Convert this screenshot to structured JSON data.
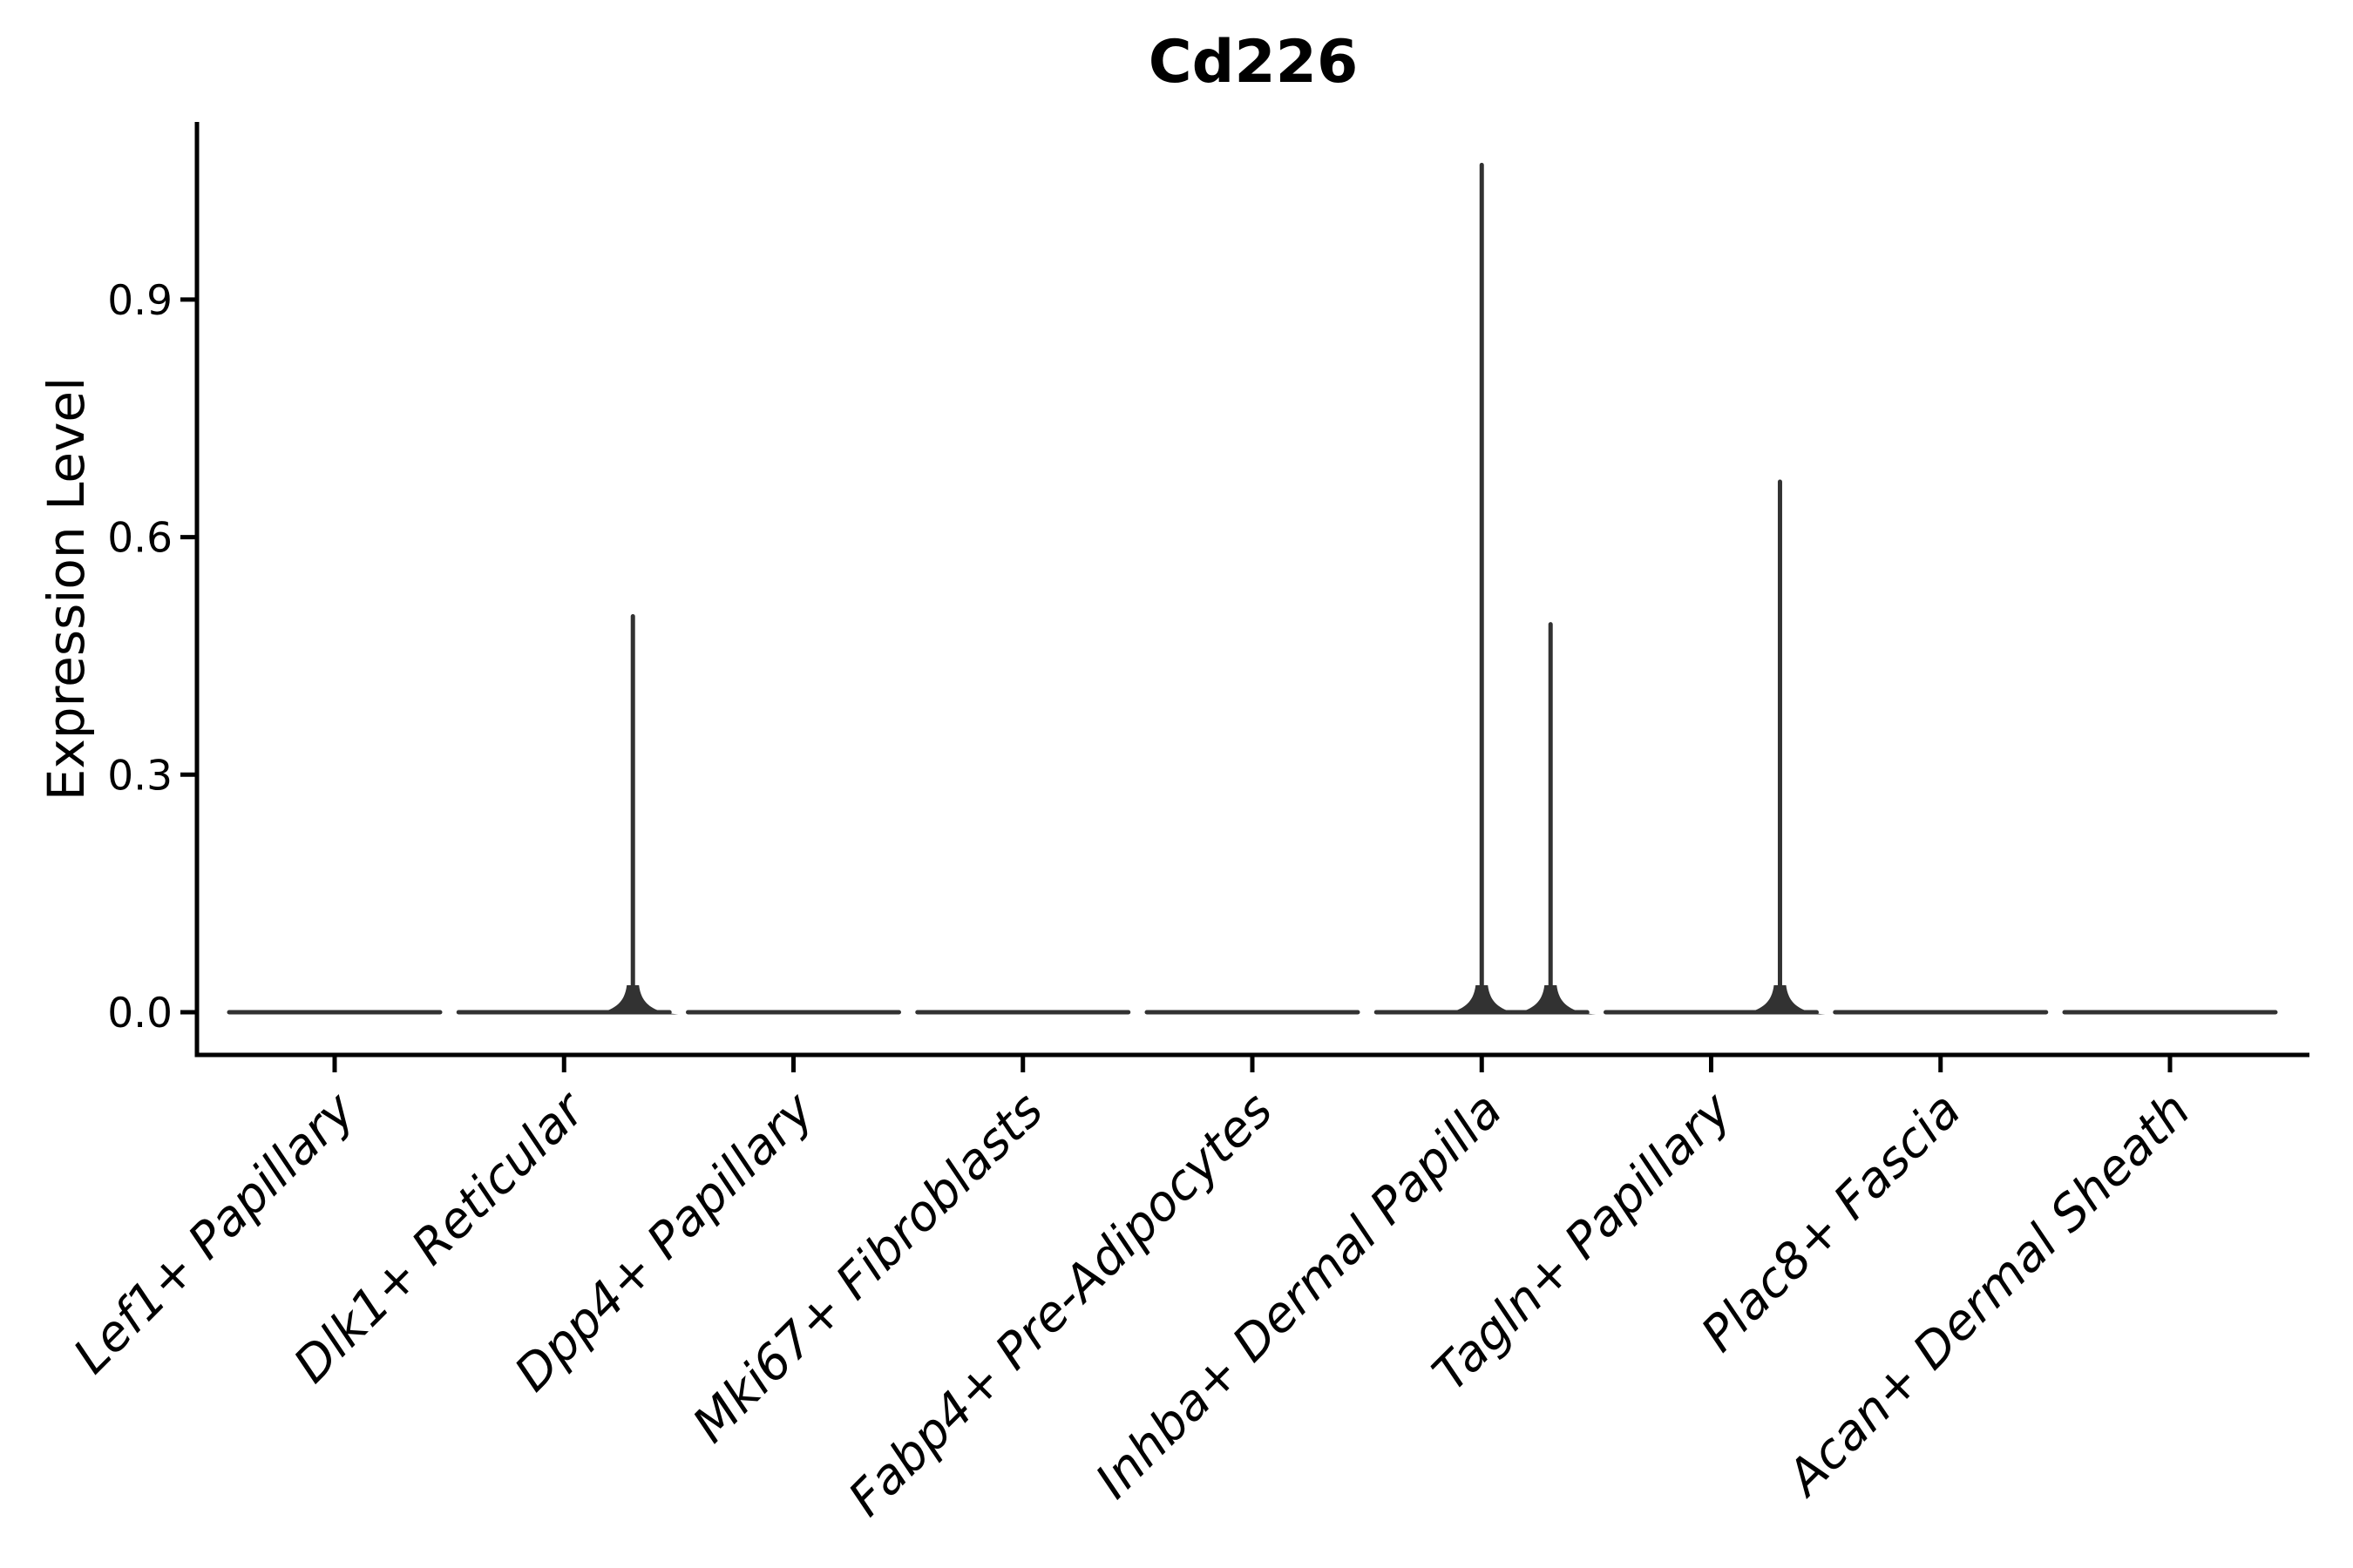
{
  "chart_data": {
    "type": "violin",
    "title": "Cd226",
    "xlabel": "",
    "ylabel": "Expression Level",
    "yticks": [
      0.0,
      0.3,
      0.6,
      0.9
    ],
    "ylim": [
      -0.054,
      1.124
    ],
    "grid": false,
    "legend": "none",
    "axis_color": "#000000",
    "violin_color": "#323232",
    "categories": [
      "Lef1+ Papillary",
      "Dlk1+ Reticular",
      "Dpp4+ Papillary",
      "Mki67+ Fibroblasts",
      "Fabp4+ Pre-Adipocytes",
      "Inhba+ Dermal Papilla",
      "Tagln+ Papillary",
      "Plac8+ Fascia",
      "Acan+ Dermal Sheath"
    ],
    "violins": [
      {
        "label": "Lef1+ Papillary",
        "body": "flat-at-zero",
        "spikes": []
      },
      {
        "label": "Dlk1+ Reticular",
        "body": "flat-at-zero",
        "spikes": [
          {
            "offset_frac": 0.3,
            "max": 0.5
          }
        ]
      },
      {
        "label": "Dpp4+ Papillary",
        "body": "flat-at-zero",
        "spikes": []
      },
      {
        "label": "Mki67+ Fibroblasts",
        "body": "flat-at-zero",
        "spikes": []
      },
      {
        "label": "Fabp4+ Pre-Adipocytes",
        "body": "flat-at-zero",
        "spikes": []
      },
      {
        "label": "Inhba+ Dermal Papilla",
        "body": "flat-at-zero",
        "spikes": [
          {
            "offset_frac": 0.0,
            "max": 1.07
          },
          {
            "offset_frac": 0.3,
            "max": 0.49
          }
        ]
      },
      {
        "label": "Tagln+ Papillary",
        "body": "flat-at-zero",
        "spikes": [
          {
            "offset_frac": 0.3,
            "max": 0.67
          }
        ]
      },
      {
        "label": "Plac8+ Fascia",
        "body": "flat-at-zero",
        "spikes": []
      },
      {
        "label": "Acan+ Dermal Sheath",
        "body": "flat-at-zero",
        "spikes": []
      }
    ]
  }
}
